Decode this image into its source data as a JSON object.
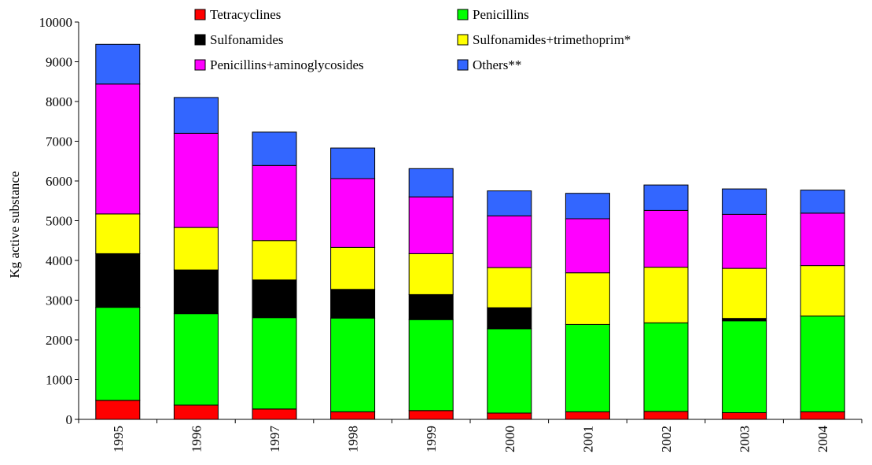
{
  "chart_data": {
    "type": "bar",
    "stacked": true,
    "title": "",
    "xlabel": "",
    "ylabel": "Kg active substance",
    "ylim": [
      0,
      10000
    ],
    "yticks": [
      0,
      1000,
      2000,
      3000,
      4000,
      5000,
      6000,
      7000,
      8000,
      9000,
      10000
    ],
    "grid": false,
    "legend_position": "top",
    "categories": [
      "1995",
      "1996",
      "1997",
      "1998",
      "1999",
      "2000",
      "2001",
      "2002",
      "2003",
      "2004"
    ],
    "series": [
      {
        "name": "Tetracyclines",
        "color": "#ff0000",
        "values": [
          480,
          360,
          260,
          190,
          220,
          160,
          190,
          200,
          170,
          190
        ]
      },
      {
        "name": "Penicillins",
        "color": "#00ff00",
        "values": [
          2340,
          2300,
          2300,
          2360,
          2290,
          2120,
          2200,
          2230,
          2310,
          2410
        ]
      },
      {
        "name": "Sulfonamides",
        "color": "#000000",
        "values": [
          1350,
          1100,
          950,
          720,
          630,
          530,
          0,
          0,
          60,
          0
        ]
      },
      {
        "name": "Sulfonamides+trimethoprim*",
        "color": "#ffff00",
        "values": [
          1000,
          1070,
          990,
          1060,
          1030,
          1010,
          1300,
          1400,
          1260,
          1270
        ]
      },
      {
        "name": "Penicillins+aminoglycosides",
        "color": "#ff00ff",
        "values": [
          3270,
          2370,
          1890,
          1730,
          1430,
          1300,
          1360,
          1430,
          1360,
          1320
        ]
      },
      {
        "name": "Others**",
        "color": "#3366ff",
        "values": [
          1000,
          900,
          840,
          770,
          710,
          630,
          640,
          640,
          640,
          580
        ]
      }
    ],
    "legend_order": [
      "Tetracyclines",
      "Penicillins",
      "Sulfonamides",
      "Sulfonamides+trimethoprim*",
      "Penicillins+aminoglycosides",
      "Others**"
    ]
  }
}
